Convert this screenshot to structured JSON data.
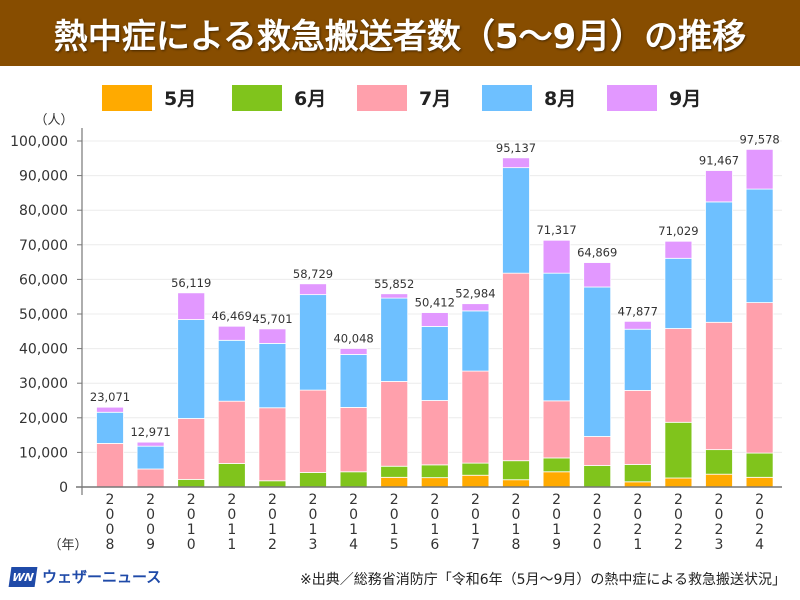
{
  "title": "熱中症による救急搬送者数（5〜9月）の推移",
  "footer": {
    "logo_mark": "WN",
    "logo_text": "ウェザーニュース",
    "source": "※出典／総務省消防庁「令和6年（5月〜9月）の熱中症による救急搬送状況」"
  },
  "chart_data": {
    "type": "bar",
    "stacked": true,
    "title": "熱中症による救急搬送者数（5〜9月）の推移",
    "xlabel": "（年）",
    "ylabel": "（人）",
    "ylim": [
      0,
      100000
    ],
    "yticks": [
      0,
      10000,
      20000,
      30000,
      40000,
      50000,
      60000,
      70000,
      80000,
      90000,
      100000
    ],
    "ytick_labels": [
      "0",
      "10,000",
      "20,000",
      "30,000",
      "40,000",
      "50,000",
      "60,000",
      "70,000",
      "80,000",
      "90,000",
      "100,000"
    ],
    "grid": true,
    "legend_position": "top",
    "categories": [
      "2008",
      "2009",
      "2010",
      "2011",
      "2012",
      "2013",
      "2014",
      "2015",
      "2016",
      "2017",
      "2018",
      "2019",
      "2020",
      "2021",
      "2022",
      "2023",
      "2024"
    ],
    "series": [
      {
        "name": "5月",
        "color": "#ffaa00",
        "values": [
          0,
          0,
          0,
          0,
          0,
          0,
          0,
          2800,
          2700,
          3400,
          2100,
          4400,
          0,
          1500,
          2600,
          3700,
          2800
        ]
      },
      {
        "name": "6月",
        "color": "#80c41c",
        "values": [
          0,
          0,
          2200,
          6800,
          1800,
          4200,
          4400,
          3200,
          3700,
          3500,
          5500,
          4000,
          6200,
          5000,
          16100,
          7100,
          7000
        ]
      },
      {
        "name": "7月",
        "color": "#ffa0ac",
        "values": [
          12600,
          5200,
          17600,
          18000,
          21100,
          23800,
          18600,
          24500,
          18600,
          26600,
          54200,
          16500,
          8400,
          21400,
          27100,
          36800,
          43500
        ]
      },
      {
        "name": "8月",
        "color": "#6ec0ff",
        "values": [
          9000,
          6600,
          28600,
          17600,
          18600,
          27600,
          15300,
          24100,
          21400,
          17400,
          30500,
          36900,
          43200,
          17700,
          20300,
          34800,
          32800
        ]
      },
      {
        "name": "9月",
        "color": "#e298ff",
        "values": [
          1471,
          1171,
          7719,
          4069,
          4201,
          3129,
          1748,
          1252,
          4012,
          2084,
          2837,
          9517,
          7069,
          2277,
          4929,
          9067,
          11478
        ]
      }
    ],
    "totals": [
      23071,
      12971,
      56119,
      46469,
      45701,
      58729,
      40048,
      55852,
      50412,
      52984,
      95137,
      71317,
      64869,
      47877,
      71029,
      91467,
      97578
    ],
    "total_labels": [
      "23,071",
      "12,971",
      "56,119",
      "46,469",
      "45,701",
      "58,729",
      "40,048",
      "55,852",
      "50,412",
      "52,984",
      "95,137",
      "71,317",
      "64,869",
      "47,877",
      "71,029",
      "91,467",
      "97,578"
    ]
  }
}
